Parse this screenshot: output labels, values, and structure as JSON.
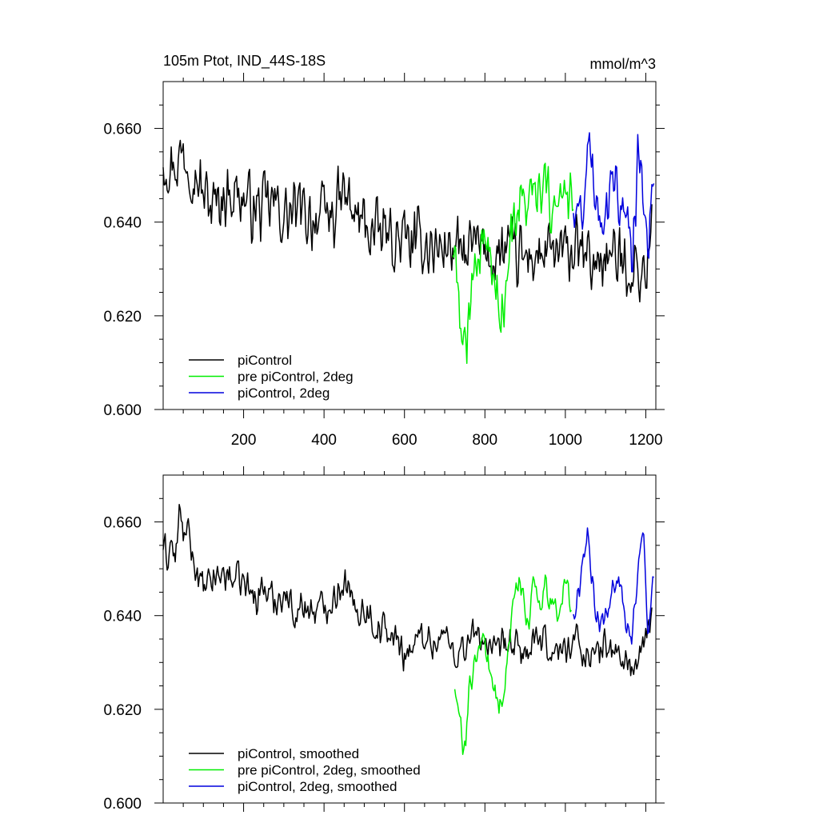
{
  "chart_data": [
    {
      "type": "line",
      "title": "105m Ptot, IND_44S-18S",
      "units": "mmol/m^3",
      "xlabel": "",
      "ylabel": "",
      "xlim": [
        0,
        1225
      ],
      "ylim": [
        0.6,
        0.67
      ],
      "xticks": [
        200,
        400,
        600,
        800,
        1000,
        1200
      ],
      "xtick_labels": [
        "200",
        "400",
        "600",
        "800",
        "1000",
        "1200"
      ],
      "yticks": [
        0.6,
        0.62,
        0.64,
        0.66
      ],
      "ytick_labels": [
        "0.600",
        "0.620",
        "0.640",
        "0.660"
      ],
      "grid": false,
      "legend_position": "bottom-left",
      "series": [
        {
          "name": "piControl",
          "color": "#000000",
          "x": [
            0,
            25,
            50,
            75,
            100,
            125,
            150,
            175,
            200,
            225,
            250,
            275,
            300,
            325,
            350,
            375,
            400,
            425,
            450,
            475,
            500,
            525,
            550,
            575,
            600,
            625,
            650,
            675,
            700,
            725,
            750,
            775,
            800,
            825,
            850,
            875,
            900,
            925,
            950,
            975,
            1000,
            1025,
            1050,
            1075,
            1100,
            1125,
            1150,
            1175,
            1200,
            1215
          ],
          "values": [
            0.654,
            0.652,
            0.655,
            0.652,
            0.646,
            0.643,
            0.646,
            0.647,
            0.645,
            0.643,
            0.643,
            0.644,
            0.641,
            0.642,
            0.642,
            0.641,
            0.641,
            0.642,
            0.646,
            0.641,
            0.64,
            0.637,
            0.638,
            0.636,
            0.636,
            0.635,
            0.636,
            0.634,
            0.635,
            0.634,
            0.633,
            0.635,
            0.634,
            0.632,
            0.634,
            0.633,
            0.632,
            0.633,
            0.633,
            0.633,
            0.633,
            0.634,
            0.632,
            0.631,
            0.633,
            0.632,
            0.631,
            0.63,
            0.629,
            0.64
          ],
          "noise": 0.0085
        },
        {
          "name": "pre piControl, 2deg",
          "color": "#00ee00",
          "x": [
            720,
            730,
            740,
            745,
            750,
            755,
            760,
            770,
            780,
            790,
            800,
            810,
            820,
            830,
            840,
            850,
            860,
            870,
            880,
            890,
            900,
            910,
            920,
            930,
            940,
            950,
            960,
            970,
            980,
            990,
            1000,
            1010,
            1020
          ],
          "values": [
            0.635,
            0.626,
            0.62,
            0.616,
            0.611,
            0.615,
            0.625,
            0.628,
            0.63,
            0.636,
            0.638,
            0.634,
            0.628,
            0.626,
            0.622,
            0.624,
            0.632,
            0.64,
            0.644,
            0.646,
            0.643,
            0.642,
            0.647,
            0.645,
            0.643,
            0.648,
            0.643,
            0.645,
            0.641,
            0.643,
            0.646,
            0.644,
            0.643
          ],
          "noise": 0.008
        },
        {
          "name": "piControl, 2deg",
          "color": "#0000dd",
          "x": [
            1020,
            1035,
            1050,
            1060,
            1075,
            1090,
            1105,
            1120,
            1135,
            1150,
            1165,
            1180,
            1195,
            1205,
            1215,
            1220
          ],
          "values": [
            0.644,
            0.641,
            0.648,
            0.656,
            0.647,
            0.642,
            0.643,
            0.648,
            0.646,
            0.639,
            0.634,
            0.652,
            0.648,
            0.636,
            0.645,
            0.647
          ],
          "noise": 0.008
        }
      ]
    },
    {
      "type": "line",
      "title": "",
      "xlabel": "",
      "ylabel": "",
      "xlim": [
        0,
        1225
      ],
      "ylim": [
        0.6,
        0.67
      ],
      "xticks": [
        200,
        400,
        600,
        800,
        1000,
        1200
      ],
      "xtick_labels": [],
      "yticks": [
        0.6,
        0.62,
        0.64,
        0.66
      ],
      "ytick_labels": [
        "0.600",
        "0.620",
        "0.640",
        "0.660"
      ],
      "grid": false,
      "legend_position": "bottom-left",
      "series": [
        {
          "name": "piControl, smoothed",
          "color": "#000000",
          "x": [
            0,
            10,
            20,
            30,
            40,
            50,
            60,
            75,
            100,
            125,
            150,
            175,
            200,
            225,
            250,
            275,
            300,
            325,
            350,
            375,
            400,
            425,
            450,
            475,
            500,
            525,
            550,
            575,
            600,
            625,
            650,
            675,
            700,
            725,
            750,
            775,
            800,
            825,
            850,
            875,
            900,
            925,
            950,
            975,
            1000,
            1025,
            1050,
            1075,
            1100,
            1125,
            1150,
            1175,
            1200,
            1215
          ],
          "values": [
            0.655,
            0.652,
            0.656,
            0.651,
            0.662,
            0.657,
            0.658,
            0.652,
            0.645,
            0.648,
            0.649,
            0.648,
            0.647,
            0.644,
            0.646,
            0.643,
            0.645,
            0.641,
            0.642,
            0.641,
            0.642,
            0.644,
            0.648,
            0.641,
            0.642,
            0.638,
            0.637,
            0.635,
            0.632,
            0.634,
            0.636,
            0.634,
            0.636,
            0.632,
            0.633,
            0.636,
            0.635,
            0.631,
            0.634,
            0.633,
            0.632,
            0.634,
            0.634,
            0.632,
            0.633,
            0.635,
            0.632,
            0.631,
            0.634,
            0.632,
            0.63,
            0.629,
            0.634,
            0.641
          ],
          "noise": 0.0045
        },
        {
          "name": "pre piControl, 2deg, smoothed",
          "color": "#00ee00",
          "x": [
            725,
            735,
            745,
            752,
            760,
            770,
            780,
            790,
            800,
            810,
            820,
            830,
            840,
            850,
            860,
            870,
            880,
            890,
            900,
            910,
            920,
            930,
            940,
            950,
            960,
            970,
            980,
            990,
            1000,
            1010,
            1015
          ],
          "values": [
            0.625,
            0.618,
            0.613,
            0.61,
            0.624,
            0.628,
            0.63,
            0.633,
            0.636,
            0.628,
            0.626,
            0.623,
            0.621,
            0.626,
            0.634,
            0.641,
            0.647,
            0.645,
            0.642,
            0.638,
            0.646,
            0.644,
            0.642,
            0.648,
            0.641,
            0.643,
            0.64,
            0.645,
            0.648,
            0.642,
            0.643
          ],
          "noise": 0.0035
        },
        {
          "name": "piControl, 2deg, smoothed",
          "color": "#0000dd",
          "x": [
            1020,
            1035,
            1045,
            1055,
            1065,
            1080,
            1095,
            1110,
            1125,
            1140,
            1150,
            1165,
            1180,
            1195,
            1205,
            1215,
            1220
          ],
          "values": [
            0.641,
            0.645,
            0.652,
            0.658,
            0.647,
            0.641,
            0.638,
            0.644,
            0.648,
            0.646,
            0.639,
            0.636,
            0.65,
            0.656,
            0.634,
            0.644,
            0.647
          ],
          "noise": 0.0035
        }
      ]
    }
  ]
}
